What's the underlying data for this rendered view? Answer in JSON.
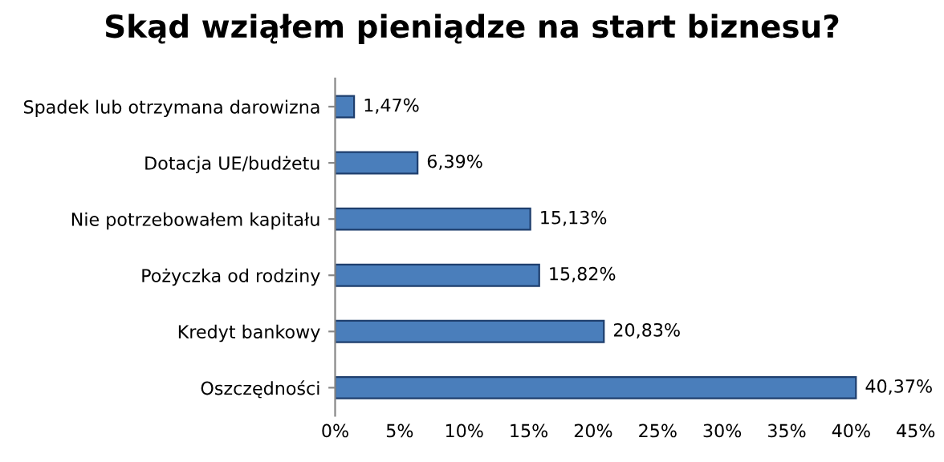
{
  "chart_data": {
    "type": "bar",
    "orientation": "horizontal",
    "title": "Skąd wziąłem pieniądze na start biznesu?",
    "categories": [
      "Spadek lub otrzymana darowizna",
      "Dotacja UE/budżetu",
      "Nie potrzebowałem kapitału",
      "Pożyczka od rodziny",
      "Kredyt bankowy",
      "Oszczędności"
    ],
    "values": [
      1.47,
      6.39,
      15.13,
      15.82,
      20.83,
      40.37
    ],
    "value_labels": [
      "1,47%",
      "6,39%",
      "15,13%",
      "15,82%",
      "20,83%",
      "40,37%"
    ],
    "color": "#4a7ebb",
    "xlim": [
      0,
      45
    ],
    "xticks": [
      {
        "value": 0,
        "label": "0%"
      },
      {
        "value": 5,
        "label": "5%"
      },
      {
        "value": 10,
        "label": "10%"
      },
      {
        "value": 15,
        "label": "15%"
      },
      {
        "value": 20,
        "label": "20%"
      },
      {
        "value": 25,
        "label": "25%"
      },
      {
        "value": 30,
        "label": "30%"
      },
      {
        "value": 35,
        "label": "35%"
      },
      {
        "value": 40,
        "label": "40%"
      },
      {
        "value": 45,
        "label": "45%"
      }
    ],
    "grid": false,
    "legend": false
  }
}
